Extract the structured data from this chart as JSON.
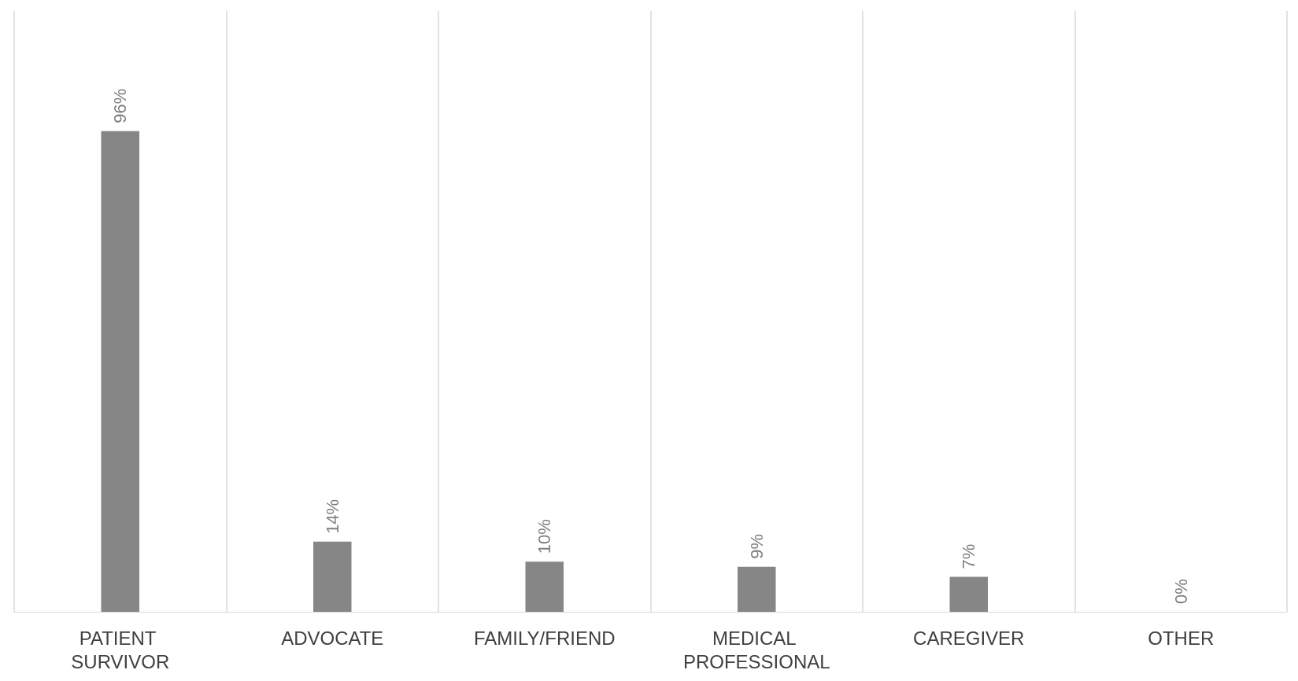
{
  "chart_data": {
    "type": "bar",
    "categories": [
      "PATIENT SURVIVOR",
      "ADVOCATE",
      "FAMILY/FRIEND",
      "MEDICAL PROFESSIONAL",
      "CAREGIVER",
      "OTHER"
    ],
    "values": [
      96,
      14,
      10,
      9,
      7,
      0
    ],
    "value_labels": [
      "96%",
      "14%",
      "10%",
      "9%",
      "7%",
      "0%"
    ],
    "color": "#868686",
    "grid": "x"
  }
}
